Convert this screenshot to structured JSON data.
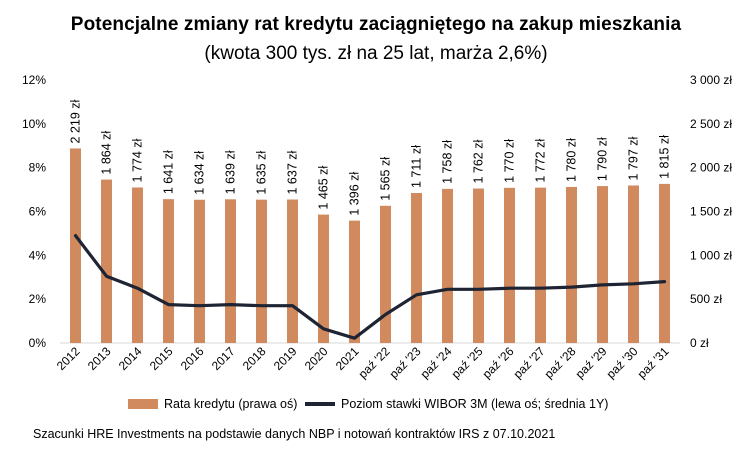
{
  "chart_data": {
    "type": "bar+line",
    "title": "Potencjalne zmiany rat kredytu zaciągniętego na zakup mieszkania",
    "subtitle": "(kwota 300 tys. zł na 25 lat, marża 2,6%)",
    "categories": [
      "2012",
      "2013",
      "2014",
      "2015",
      "2016",
      "2017",
      "2018",
      "2019",
      "2020",
      "2021",
      "paź '22",
      "paź '23",
      "paź '24",
      "paź '25",
      "paź '26",
      "paź '27",
      "paź '28",
      "paź '29",
      "paź '30",
      "paź '31"
    ],
    "series": [
      {
        "name": "Rata kredytu (prawa oś)",
        "type": "bar",
        "axis": "right",
        "color": "#D08A5E",
        "values": [
          2219,
          1864,
          1774,
          1641,
          1634,
          1639,
          1635,
          1637,
          1465,
          1396,
          1565,
          1711,
          1758,
          1762,
          1770,
          1772,
          1780,
          1790,
          1797,
          1815
        ],
        "labels": [
          "2 219 zł",
          "1 864 zł",
          "1 774 zł",
          "1 641 zł",
          "1 634 zł",
          "1 639 zł",
          "1 635 zł",
          "1 637 zł",
          "1 465 zł",
          "1 396 zł",
          "1 565 zł",
          "1 711 zł",
          "1 758 zł",
          "1 762 zł",
          "1 770 zł",
          "1 772 zł",
          "1 780 zł",
          "1 790 zł",
          "1 797 zł",
          "1 815 zł"
        ]
      },
      {
        "name": "Poziom stawki WIBOR 3M (lewa oś; średnia 1Y)",
        "type": "line",
        "axis": "left",
        "color": "#1E2433",
        "values": [
          4.9,
          3.05,
          2.5,
          1.75,
          1.7,
          1.75,
          1.7,
          1.7,
          0.65,
          0.22,
          1.3,
          2.2,
          2.45,
          2.45,
          2.5,
          2.5,
          2.55,
          2.65,
          2.7,
          2.8
        ]
      }
    ],
    "left_axis": {
      "min": 0,
      "max": 12,
      "step": 2,
      "tick_labels": [
        "0%",
        "2%",
        "4%",
        "6%",
        "8%",
        "10%",
        "12%"
      ]
    },
    "right_axis": {
      "min": 0,
      "max": 3000,
      "step": 500,
      "tick_labels": [
        "0 zł",
        "500 zł",
        "1 000 zł",
        "1 500 zł",
        "2 000 zł",
        "2 500 zł",
        "3 000 zł"
      ]
    },
    "grid": false,
    "legend_position": "bottom"
  },
  "legend": {
    "bar_label": "Rata kredytu (prawa oś)",
    "line_label": "Poziom stawki WIBOR 3M (lewa oś; średnia 1Y)"
  },
  "source": "Szacunki HRE Investments na podstawie danych NBP i notowań kontraktów IRS z 07.10.2021"
}
